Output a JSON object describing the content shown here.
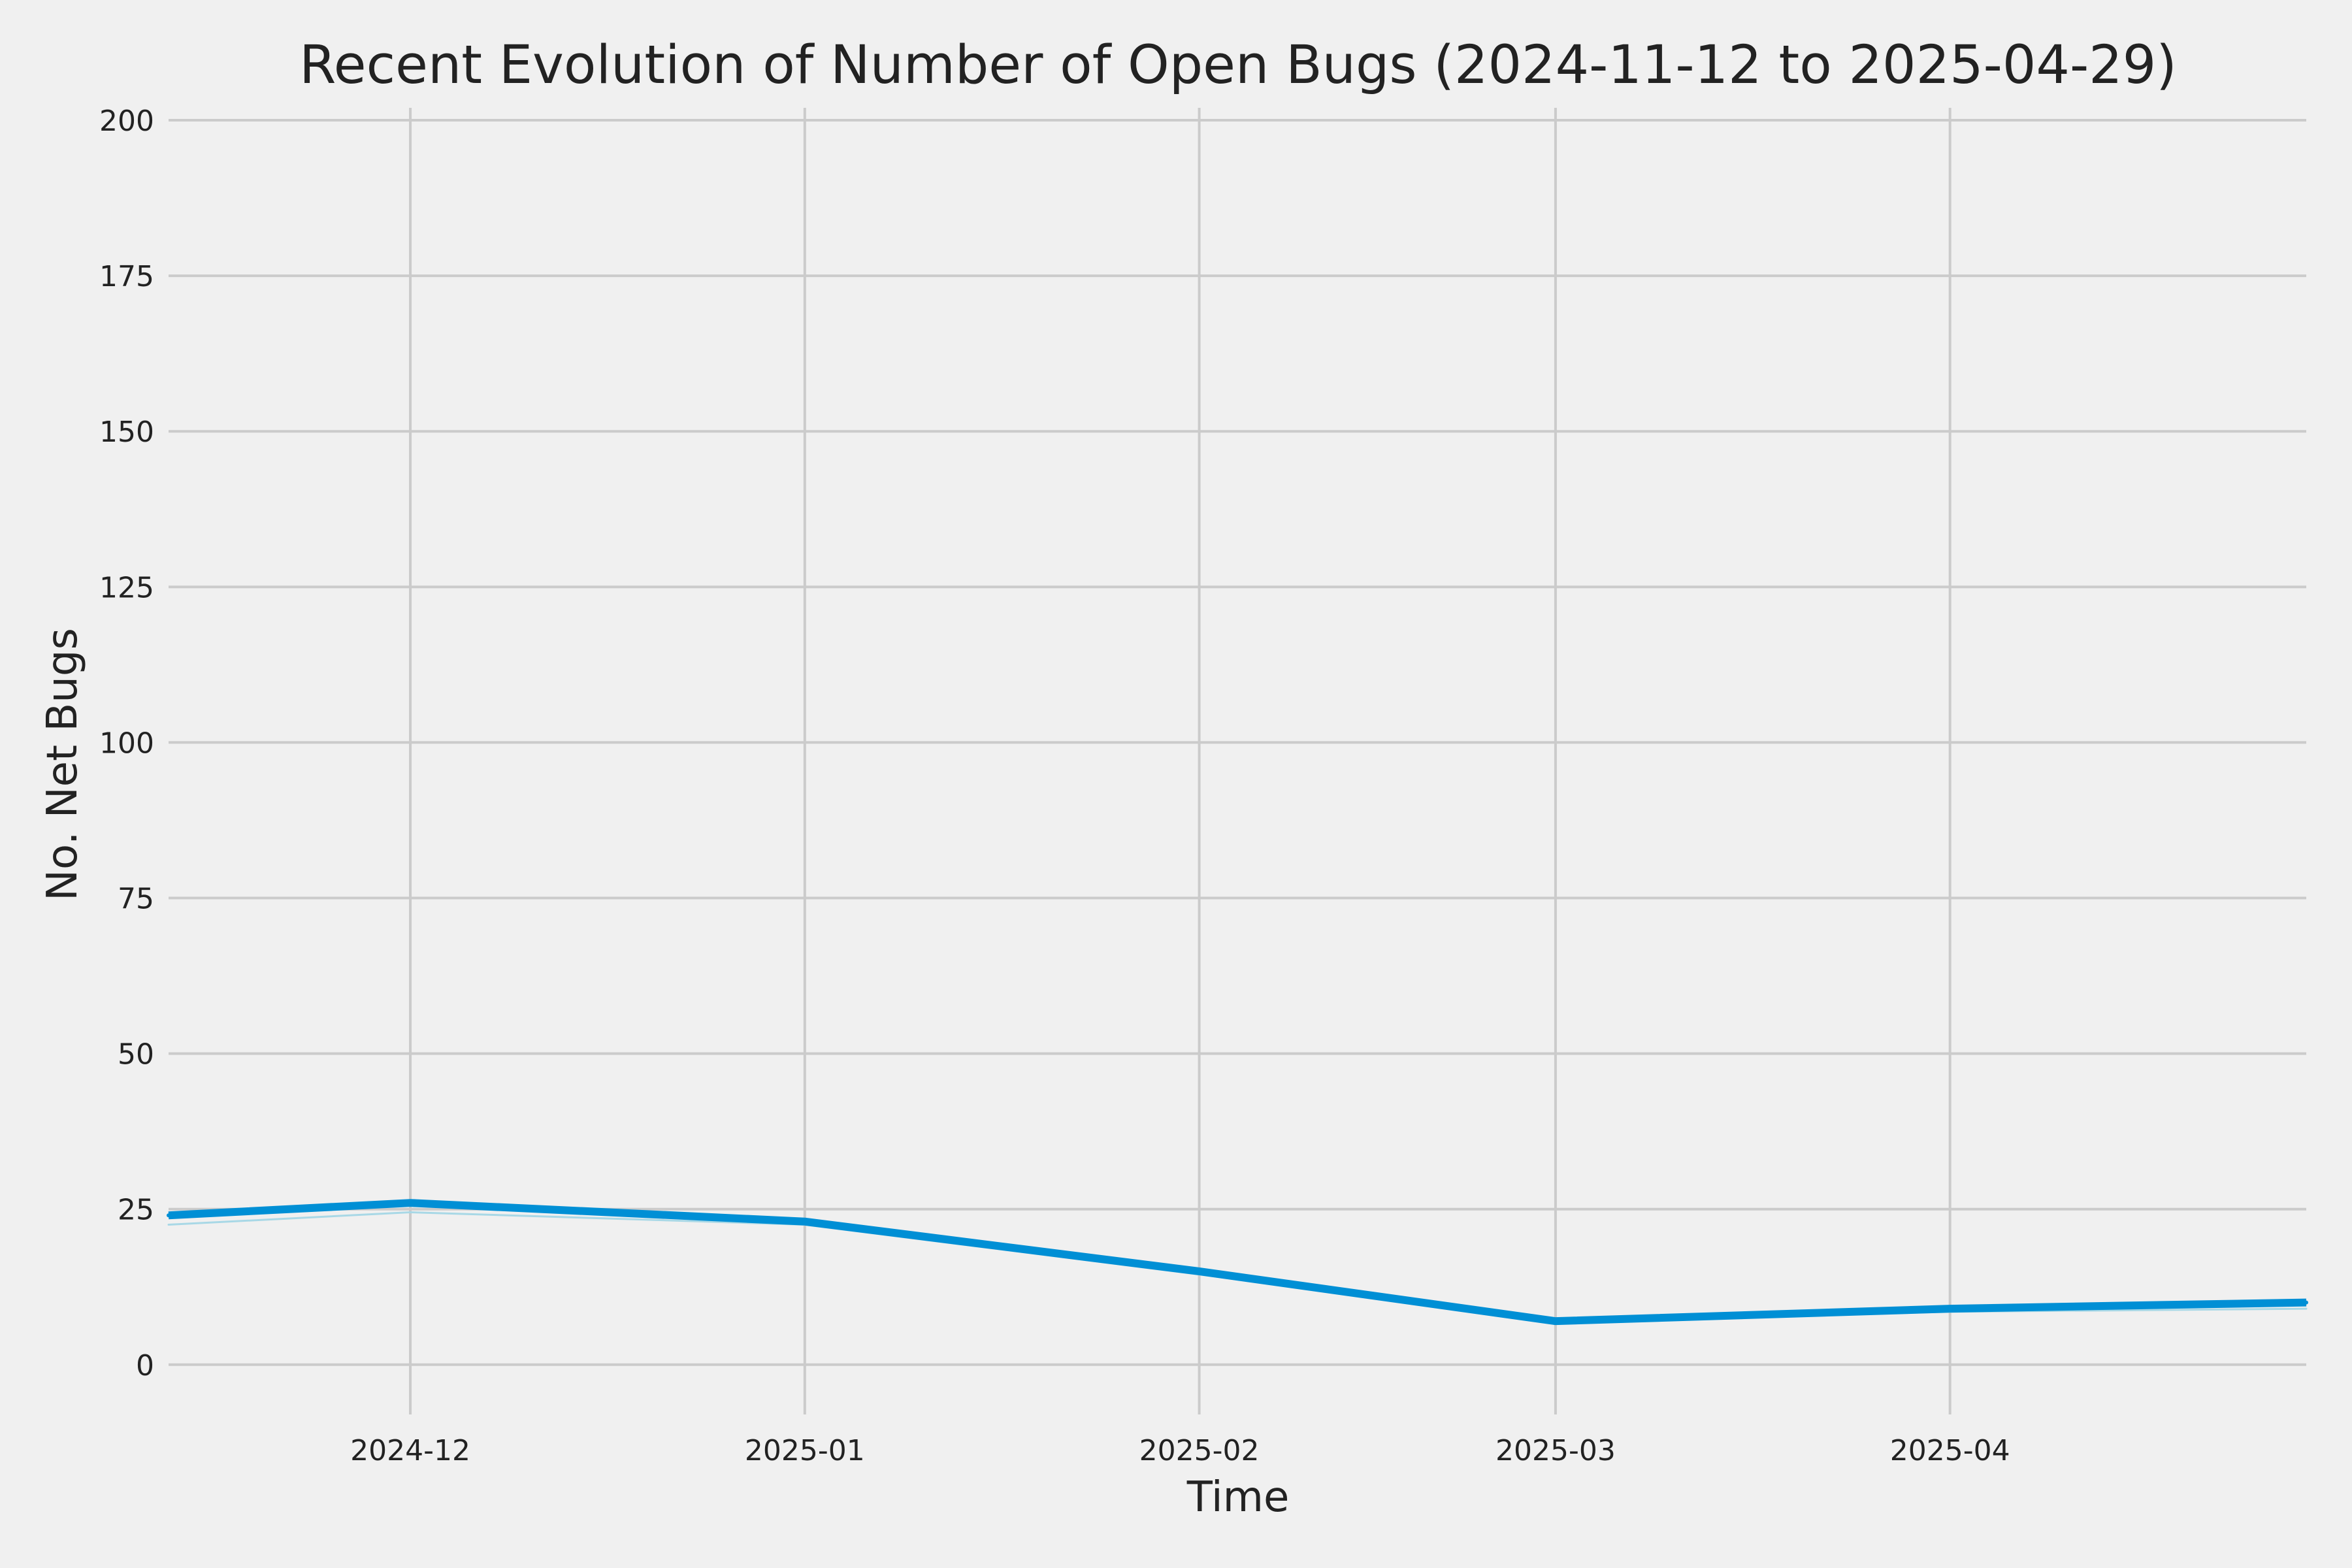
{
  "chart_data": {
    "type": "line",
    "title": "Recent Evolution of Number of Open Bugs (2024-11-12 to 2025-04-29)",
    "xlabel": "Time",
    "ylabel": "No. Net Bugs",
    "xlim": [
      "2024-11-12",
      "2025-04-29"
    ],
    "ylim": [
      -8,
      202
    ],
    "grid": true,
    "x_ticks": [
      "2024-12",
      "2025-01",
      "2025-02",
      "2025-03",
      "2025-04"
    ],
    "x_tick_dates": [
      "2024-12-01",
      "2025-01-01",
      "2025-02-01",
      "2025-03-01",
      "2025-04-01"
    ],
    "y_ticks": [
      0,
      25,
      50,
      75,
      100,
      125,
      150,
      175,
      200
    ],
    "x": [
      "2024-11-12",
      "2024-12-01",
      "2025-01-01",
      "2025-02-01",
      "2025-03-01",
      "2025-04-01",
      "2025-04-29"
    ],
    "series": [
      {
        "values": [
          24,
          26,
          23,
          15,
          7,
          9,
          10
        ],
        "color": "#008fd5"
      },
      {
        "values": [
          22.5,
          24.5,
          22.5,
          14.5,
          7,
          8.5,
          9
        ],
        "color": "#a8d8e6"
      }
    ]
  }
}
